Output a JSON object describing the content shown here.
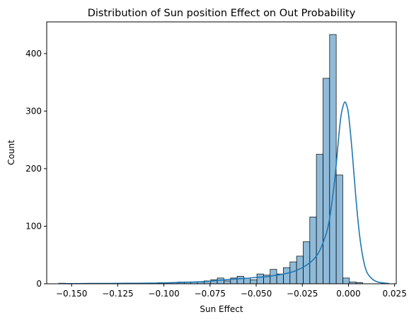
{
  "chart_data": {
    "type": "bar",
    "title": "Distribution of Sun position Effect on Out Probability",
    "xlabel": "Sun Effect",
    "ylabel": "Count",
    "xlim": [
      -0.1635,
      0.0259
    ],
    "ylim": [
      0,
      455
    ],
    "grid": false,
    "colors": {
      "bar_fill": "#1f77b4",
      "bar_fill_opacity": 0.5,
      "bar_edge": "#000000",
      "kde_line": "#1f77b4"
    },
    "x_ticks": [
      {
        "value": -0.15,
        "label": "−0.150"
      },
      {
        "value": -0.125,
        "label": "−0.125"
      },
      {
        "value": -0.1,
        "label": "−0.100"
      },
      {
        "value": -0.075,
        "label": "−0.075"
      },
      {
        "value": -0.05,
        "label": "−0.050"
      },
      {
        "value": -0.025,
        "label": "−0.025"
      },
      {
        "value": 0.0,
        "label": "0.000"
      },
      {
        "value": 0.025,
        "label": "0.025"
      }
    ],
    "y_ticks": [
      {
        "value": 0,
        "label": "0"
      },
      {
        "value": 100,
        "label": "100"
      },
      {
        "value": 200,
        "label": "200"
      },
      {
        "value": 300,
        "label": "300"
      },
      {
        "value": 400,
        "label": "400"
      }
    ],
    "histogram": {
      "bin_start": -0.157,
      "bin_width": 0.00358,
      "counts": [
        1,
        0,
        0,
        0,
        0,
        0,
        0,
        0,
        0,
        0,
        0,
        0,
        0,
        0,
        1,
        2,
        2,
        2,
        3,
        3,
        3,
        3,
        5,
        7,
        10,
        5,
        10,
        13,
        10,
        7,
        17,
        15,
        25,
        17,
        28,
        38,
        48,
        73,
        116,
        225,
        357,
        433,
        189,
        10,
        3,
        2
      ]
    },
    "kde": {
      "x": [
        -0.157,
        -0.15,
        -0.14,
        -0.13,
        -0.12,
        -0.11,
        -0.1,
        -0.09,
        -0.08,
        -0.075,
        -0.07,
        -0.065,
        -0.06,
        -0.055,
        -0.05,
        -0.045,
        -0.04,
        -0.035,
        -0.03,
        -0.025,
        -0.022,
        -0.019,
        -0.016,
        -0.013,
        -0.011,
        -0.009,
        -0.007,
        -0.005,
        -0.004,
        -0.003,
        -0.002,
        -0.001,
        0.0,
        0.002,
        0.004,
        0.006,
        0.008,
        0.01,
        0.013,
        0.016,
        0.02,
        0.022
      ],
      "y": [
        0.3,
        0.3,
        0.5,
        0.6,
        0.8,
        1.0,
        1.5,
        2.5,
        3.5,
        4.5,
        6,
        7.5,
        8.5,
        9.5,
        11,
        12,
        14.5,
        17,
        21,
        28,
        34,
        42,
        55,
        78,
        100,
        140,
        195,
        265,
        293,
        308,
        316,
        310,
        295,
        230,
        150,
        85,
        43,
        20,
        8,
        3,
        1,
        0.5
      ]
    }
  }
}
